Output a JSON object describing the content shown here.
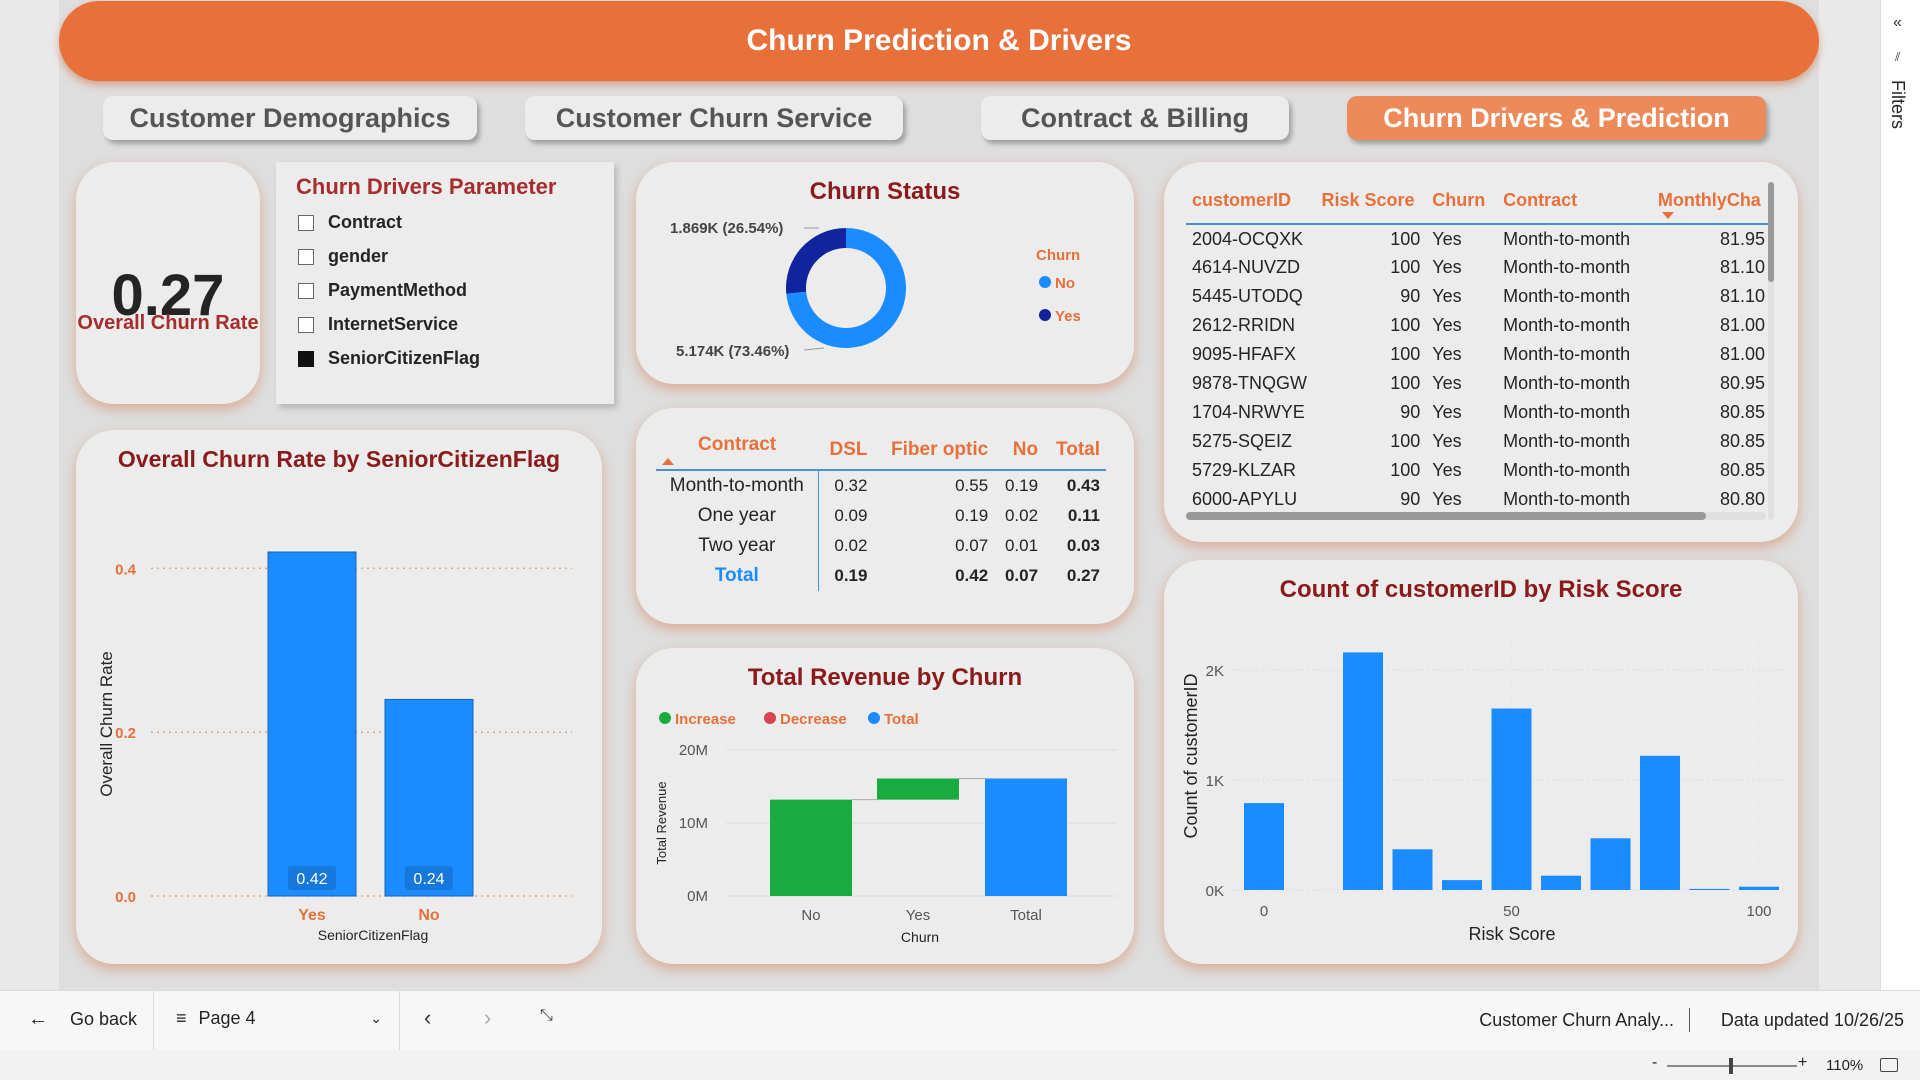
{
  "header": {
    "title": "Churn Prediction & Drivers"
  },
  "tabs": [
    {
      "label": "Customer Demographics"
    },
    {
      "label": "Customer Churn Service"
    },
    {
      "label": "Contract & Billing"
    },
    {
      "label": "Churn Drivers & Prediction",
      "active": true
    }
  ],
  "kpi": {
    "value": "0.27",
    "label": "Overall Churn Rate"
  },
  "slicer": {
    "title": "Churn Drivers Parameter",
    "items": [
      {
        "label": "Contract",
        "checked": false
      },
      {
        "label": "gender",
        "checked": false
      },
      {
        "label": "PaymentMethod",
        "checked": false
      },
      {
        "label": "InternetService",
        "checked": false
      },
      {
        "label": "SeniorCitizenFlag",
        "checked": true
      }
    ]
  },
  "donut": {
    "title": "Churn Status",
    "legend_title": "Churn",
    "labels": {
      "yes": "1.869K (26.54%)",
      "no": "5.174K (73.46%)"
    },
    "chart_data": {
      "type": "pie",
      "categories": [
        "No",
        "Yes"
      ],
      "values": [
        5174,
        1869
      ],
      "colors": [
        "#1a8cff",
        "#12239e"
      ]
    }
  },
  "matrix": {
    "headers": [
      "Contract",
      "DSL",
      "Fiber optic",
      "No",
      "Total"
    ],
    "rows": [
      [
        "Month-to-month",
        "0.32",
        "0.55",
        "0.19",
        "0.43"
      ],
      [
        "One year",
        "0.09",
        "0.19",
        "0.02",
        "0.11"
      ],
      [
        "Two year",
        "0.02",
        "0.07",
        "0.01",
        "0.03"
      ]
    ],
    "total": [
      "Total",
      "0.19",
      "0.42",
      "0.07",
      "0.27"
    ]
  },
  "table": {
    "headers": [
      "customerID",
      "Risk Score",
      "Churn",
      "Contract",
      "MonthlyCha"
    ],
    "rows": [
      [
        "2004-OCQXK",
        "100",
        "Yes",
        "Month-to-month",
        "81.95"
      ],
      [
        "4614-NUVZD",
        "100",
        "Yes",
        "Month-to-month",
        "81.10"
      ],
      [
        "5445-UTODQ",
        "90",
        "Yes",
        "Month-to-month",
        "81.10"
      ],
      [
        "2612-RRIDN",
        "100",
        "Yes",
        "Month-to-month",
        "81.00"
      ],
      [
        "9095-HFAFX",
        "100",
        "Yes",
        "Month-to-month",
        "81.00"
      ],
      [
        "9878-TNQGW",
        "100",
        "Yes",
        "Month-to-month",
        "80.95"
      ],
      [
        "1704-NRWYE",
        "90",
        "Yes",
        "Month-to-month",
        "80.85"
      ],
      [
        "5275-SQEIZ",
        "100",
        "Yes",
        "Month-to-month",
        "80.85"
      ],
      [
        "5729-KLZAR",
        "100",
        "Yes",
        "Month-to-month",
        "80.85"
      ],
      [
        "6000-APYLU",
        "90",
        "Yes",
        "Month-to-month",
        "80.80"
      ]
    ]
  },
  "bar_senior": {
    "title": "Overall Churn Rate by SeniorCitizenFlag",
    "chart_data": {
      "type": "bar",
      "categories": [
        "Yes",
        "No"
      ],
      "values": [
        0.42,
        0.24
      ],
      "data_labels": [
        "0.42",
        "0.24"
      ],
      "xlabel": "SeniorCitizenFlag",
      "ylabel": "Overall Churn Rate",
      "ylim": [
        0,
        0.42
      ],
      "yticks": [
        "0.0",
        "0.2",
        "0.4"
      ],
      "ytick_values": [
        0,
        0.2,
        0.4
      ],
      "color": "#1a8cff"
    }
  },
  "waterfall": {
    "title": "Total Revenue by Churn",
    "legend": [
      {
        "label": "Increase",
        "color": "#1aab40"
      },
      {
        "label": "Decrease",
        "color": "#d64550"
      },
      {
        "label": "Total",
        "color": "#1a8cff"
      }
    ],
    "chart_data": {
      "type": "bar",
      "categories": [
        "No",
        "Yes",
        "Total"
      ],
      "steps": [
        [
          0,
          13.2
        ],
        [
          13.2,
          16.1
        ],
        [
          0,
          16.1
        ]
      ],
      "colors": [
        "#1aab40",
        "#1aab40",
        "#1a8cff"
      ],
      "xlabel": "Churn",
      "ylabel": "Total Revenue",
      "yticks": [
        "0M",
        "10M",
        "20M"
      ],
      "ytick_values": [
        0,
        10,
        20
      ],
      "ylim": [
        0,
        20
      ]
    }
  },
  "risk": {
    "title": "Count of customerID by Risk Score",
    "chart_data": {
      "type": "bar",
      "x": [
        0,
        10,
        20,
        30,
        40,
        50,
        60,
        70,
        80,
        90,
        100
      ],
      "values": [
        790,
        0,
        2160,
        370,
        90,
        1650,
        130,
        470,
        1220,
        10,
        30
      ],
      "xlabel": "Risk Score",
      "ylabel": "Count of customerID",
      "xticks": [
        "0",
        "50",
        "100"
      ],
      "xtick_values": [
        0,
        50,
        100
      ],
      "yticks": [
        "0K",
        "1K",
        "2K"
      ],
      "ytick_values": [
        0,
        1000,
        2000
      ],
      "ylim": [
        0,
        2400
      ],
      "color": "#1a8cff"
    }
  },
  "bottom": {
    "go_back": "Go back",
    "page": "Page 4",
    "report": "Customer Churn Analy...",
    "updated": "Data updated 10/26/25"
  },
  "status": {
    "zoom": "110%"
  },
  "filters": {
    "label": "Filters"
  }
}
